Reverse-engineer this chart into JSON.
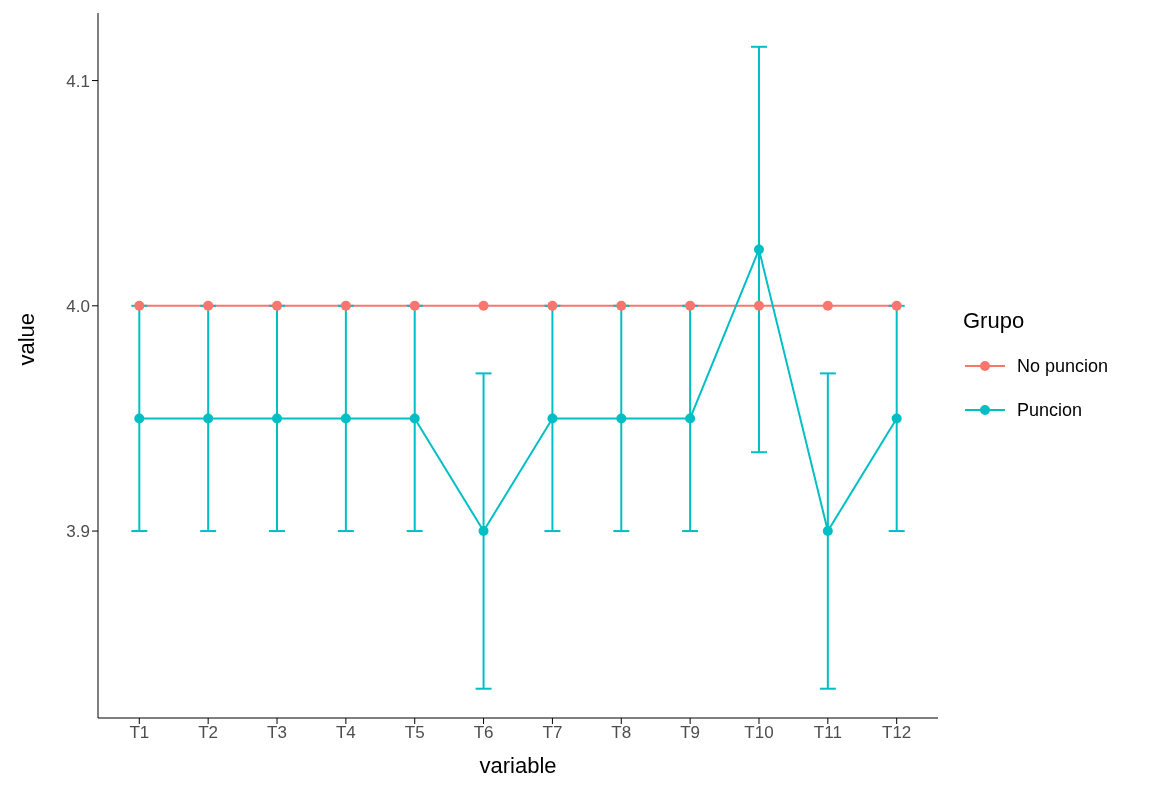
{
  "chart_data": {
    "type": "line",
    "xlabel": "variable",
    "ylabel": "value",
    "legend_title": "Grupo",
    "legend": "right",
    "grid": false,
    "marker": "circle",
    "line_style": "solid",
    "categories": [
      "T1",
      "T2",
      "T3",
      "T4",
      "T5",
      "T6",
      "T7",
      "T8",
      "T9",
      "T10",
      "T11",
      "T12"
    ],
    "ylim": [
      3.817,
      4.13
    ],
    "yticks": [
      3.9,
      {
        "value": 4.0,
        "label": "4.0"
      },
      4.1
    ],
    "series": [
      {
        "name": "No puncion",
        "color": "#f8766d",
        "values": [
          4.0,
          4.0,
          4.0,
          4.0,
          4.0,
          4.0,
          4.0,
          4.0,
          4.0,
          4.0,
          4.0,
          4.0
        ]
      },
      {
        "name": "Puncion",
        "color": "#00bfc4",
        "values": [
          3.95,
          3.95,
          3.95,
          3.95,
          3.95,
          3.9,
          3.95,
          3.95,
          3.95,
          4.025,
          3.9,
          3.95
        ],
        "errors": [
          0.05,
          0.05,
          0.05,
          0.05,
          0.05,
          0.07,
          0.05,
          0.05,
          0.05,
          0.09,
          0.07,
          0.05
        ]
      }
    ]
  }
}
